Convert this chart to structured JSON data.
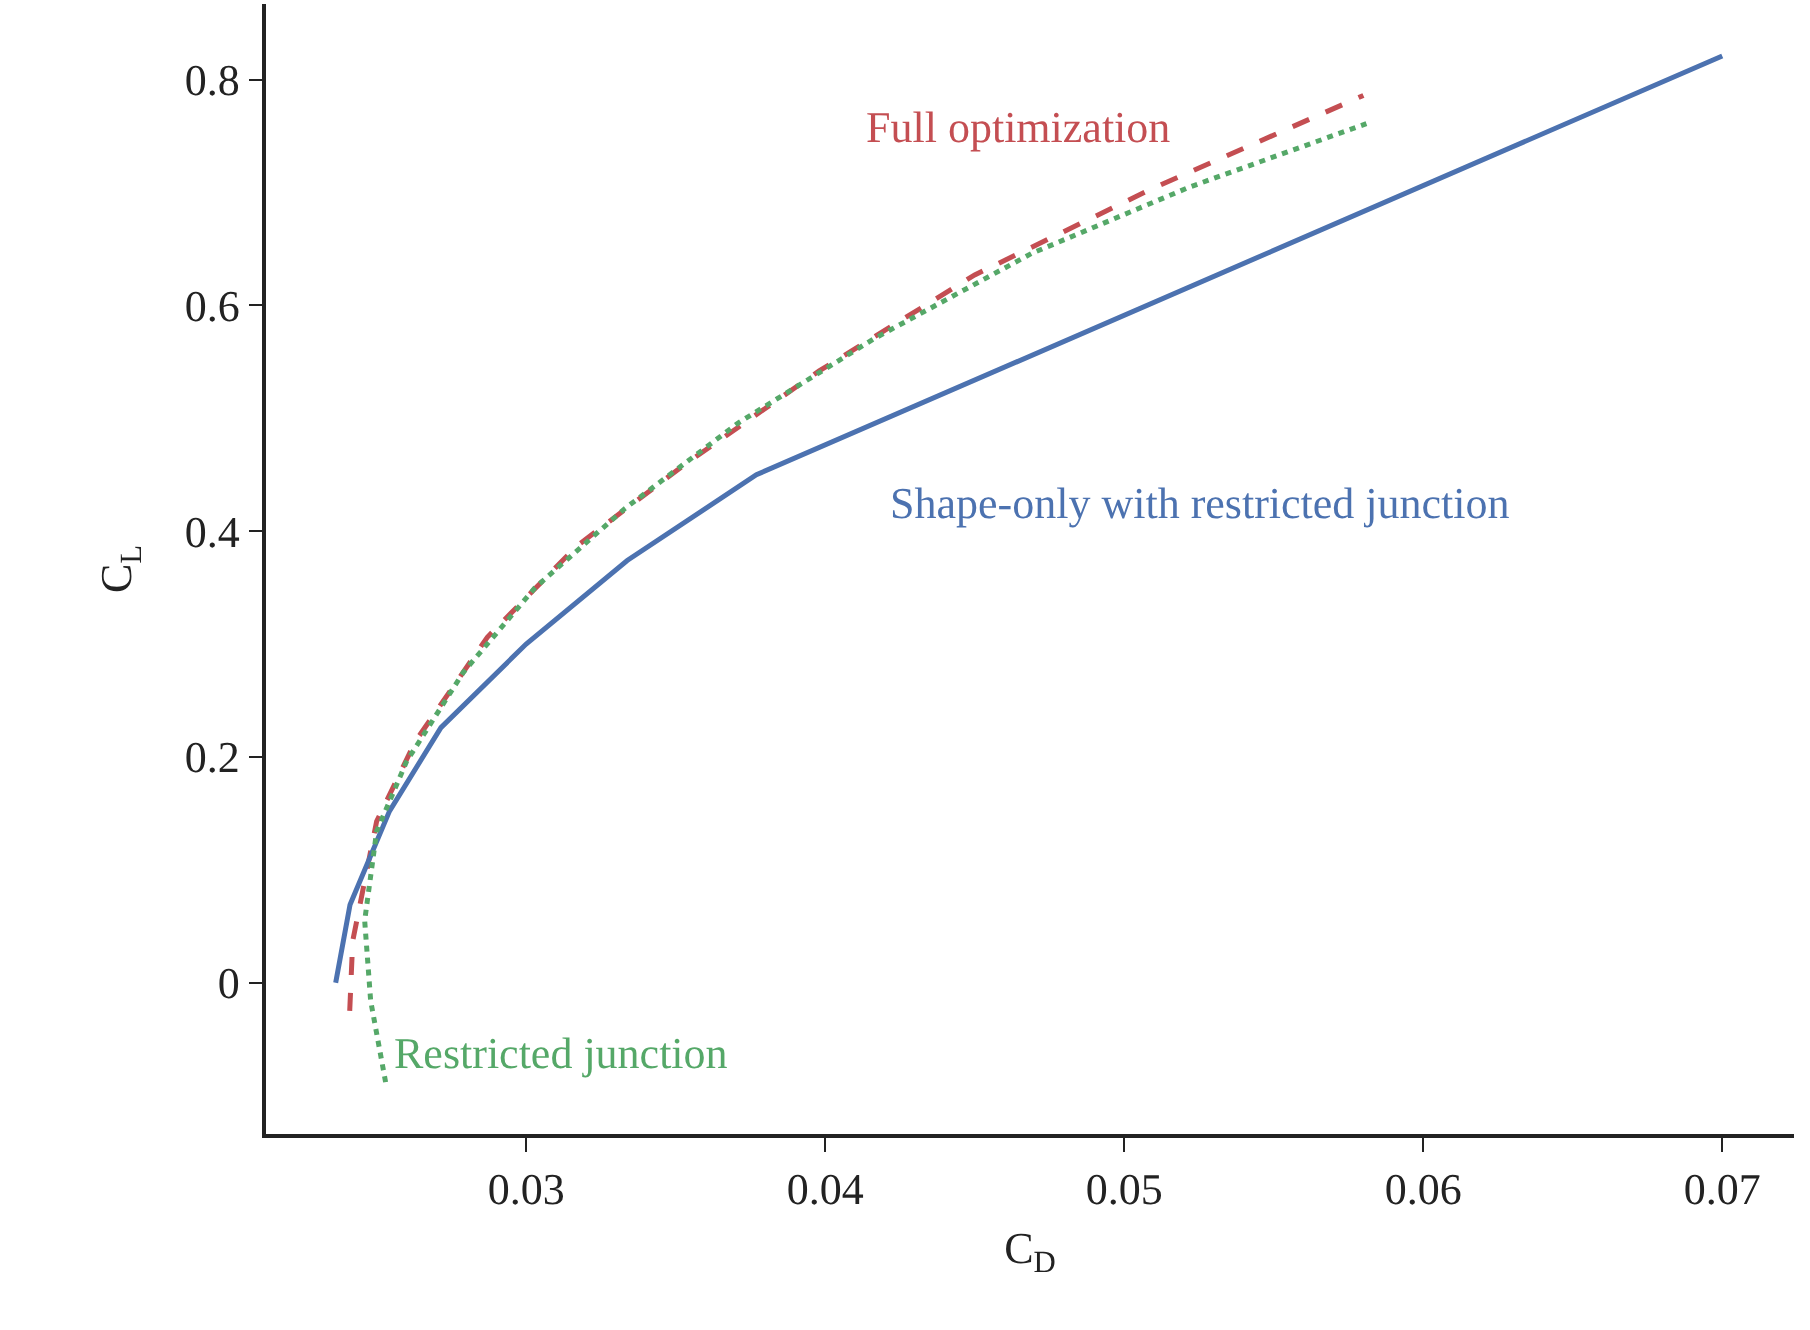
{
  "chart_data": {
    "type": "line",
    "xlabel": "C$_{D}$",
    "ylabel": "C$_{L}$",
    "xlim": [
      0.0213,
      0.0724
    ],
    "xticks": [
      0.03,
      0.04,
      0.05,
      0.06,
      0.07
    ],
    "ylim": [
      -0.134,
      0.867
    ],
    "yticks": [
      0.0,
      0.2,
      0.4,
      0.6,
      0.8
    ],
    "grid": false,
    "legend": false,
    "series": [
      {
        "name": "Full optimization",
        "color": "#c44e52",
        "line_style": "dashed",
        "x": [
          0.0241,
          0.0242,
          0.025,
          0.0263,
          0.0287,
          0.0317,
          0.0353,
          0.0398,
          0.045,
          0.0509,
          0.058
        ],
        "values": [
          -0.025,
          0.037,
          0.143,
          0.214,
          0.306,
          0.387,
          0.459,
          0.542,
          0.627,
          0.703,
          0.786
        ]
      },
      {
        "name": "Shape-only with restricted junction",
        "color": "#4c72b0",
        "line_style": "solid",
        "x": [
          0.02363,
          0.02411,
          0.02543,
          0.02715,
          0.03,
          0.03338,
          0.0377,
          0.07
        ],
        "values": [
          0.0,
          0.069,
          0.152,
          0.226,
          0.3,
          0.374,
          0.45,
          0.821
        ]
      },
      {
        "name": "Restricted junction",
        "color": "#55a868",
        "line_style": "dotted",
        "x": [
          0.0253,
          0.0248,
          0.0246,
          0.025,
          0.026,
          0.0279,
          0.0303,
          0.0333,
          0.0371,
          0.0416,
          0.0469,
          0.0522,
          0.0581
        ],
        "values": [
          -0.088,
          -0.016,
          0.055,
          0.134,
          0.196,
          0.275,
          0.35,
          0.42,
          0.496,
          0.57,
          0.646,
          0.705,
          0.761
        ]
      }
    ]
  }
}
